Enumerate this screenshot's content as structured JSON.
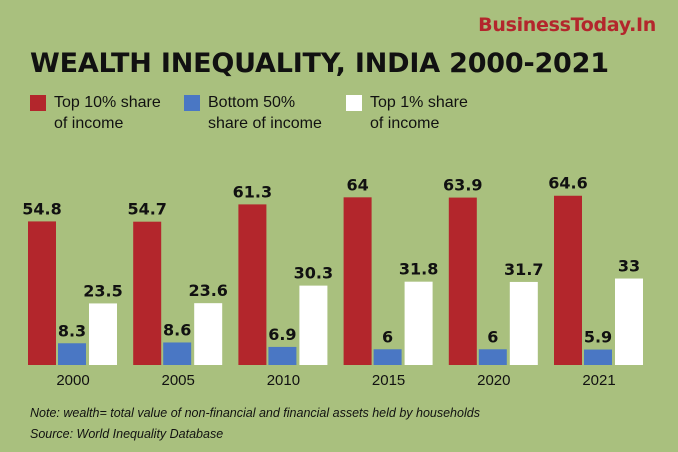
{
  "brand": "BusinessToday.In",
  "colors": {
    "background": "#a9c07e",
    "top10": "#b3262c",
    "bottom50": "#4a77c4",
    "top1": "#ffffff"
  },
  "legend": [
    {
      "label": "Top 10% share\nof income",
      "color": "#b3262c"
    },
    {
      "label": "Bottom 50%\nshare of income",
      "color": "#4a77c4"
    },
    {
      "label": "Top 1% share\nof income",
      "color": "#ffffff"
    }
  ],
  "notes": {
    "note": "Note: wealth= total value of non-financial and financial assets held by households",
    "source": "Source: World Inequality Database"
  },
  "chart_data": {
    "type": "bar",
    "title": "WEALTH INEQUALITY, INDIA 2000-2021",
    "categories": [
      "2000",
      "2005",
      "2010",
      "2015",
      "2020",
      "2021"
    ],
    "series": [
      {
        "name": "Top 10% share of income",
        "values": [
          54.8,
          54.7,
          61.3,
          64,
          63.9,
          64.6
        ],
        "color": "#b3262c"
      },
      {
        "name": "Bottom 50% share of income",
        "values": [
          8.3,
          8.6,
          6.9,
          6,
          6,
          5.9
        ],
        "color": "#4a77c4"
      },
      {
        "name": "Top 1% share of income",
        "values": [
          23.5,
          23.6,
          30.3,
          31.8,
          31.7,
          33
        ],
        "color": "#ffffff"
      }
    ],
    "data_labels": [
      [
        "54.8",
        "54.7",
        "61.3",
        "64",
        "63.9",
        "64.6"
      ],
      [
        "8.3",
        "8.6",
        "6.9",
        "6",
        "6",
        "5.9"
      ],
      [
        "23.5",
        "23.6",
        "30.3",
        "31.8",
        "31.7",
        "33"
      ]
    ],
    "ylim": [
      0,
      70
    ],
    "grid": false,
    "legend_position": "top-left"
  }
}
